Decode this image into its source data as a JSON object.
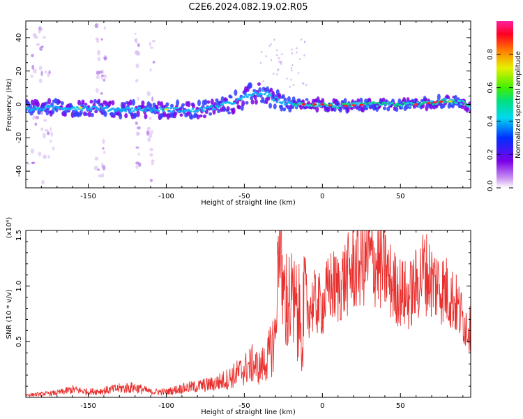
{
  "title": "C2E6.2024.082.19.02.R05",
  "colors": {
    "snr_line": "#e8302e",
    "frame": "#000000"
  },
  "chart_data": [
    {
      "type": "heatmap",
      "xlabel": "Height of straight line (km)",
      "ylabel": "Frequency (Hz)",
      "xlim": [
        -190,
        95
      ],
      "ylim": [
        -50,
        50
      ],
      "x_ticks": [
        -150,
        -100,
        -50,
        0,
        50
      ],
      "y_ticks": [
        -40,
        -20,
        0,
        20,
        40
      ],
      "colorbar": {
        "label": "Normalized spectral amplitude",
        "range": [
          0.0,
          1.0
        ],
        "ticks": [
          "0.0",
          "0.2",
          "0.4",
          "0.6",
          "0.8"
        ],
        "colormap": "rainbow (white-violet-blue-cyan-green-yellow-red-magenta)"
      },
      "ridge": {
        "x": [
          -190,
          -170,
          -150,
          -130,
          -110,
          -95,
          -85,
          -70,
          -55,
          -45,
          -38,
          -30,
          -25,
          -20,
          -10,
          0,
          10,
          30,
          50,
          60,
          70,
          80,
          90,
          95
        ],
        "freq_hz": [
          -3,
          -2,
          -2,
          -3,
          -3,
          -3,
          -4,
          -2,
          2,
          6,
          7,
          3,
          1,
          0,
          0,
          0,
          -1,
          0,
          0,
          0,
          1,
          2,
          1,
          -2
        ]
      }
    },
    {
      "type": "line",
      "xlabel": "Height of straight line (km)",
      "ylabel": "SNR (10 * v/v)",
      "y_multiplier_label": "(x10⁴)",
      "xlim": [
        -190,
        95
      ],
      "ylim": [
        0,
        1.5
      ],
      "x_ticks": [
        -150,
        -100,
        -50,
        0,
        50
      ],
      "y_ticks": [
        "0.5",
        "1.0",
        "1.5"
      ],
      "grid": false,
      "series": [
        {
          "x": [
            -190,
            -180,
            -170,
            -160,
            -150,
            -140,
            -130,
            -120,
            -110,
            -100,
            -90,
            -80,
            -70,
            -60,
            -50,
            -45,
            -40,
            -35,
            -30,
            -28,
            -25,
            -20,
            -15,
            -10,
            -5,
            0,
            5,
            10,
            15,
            20,
            25,
            30,
            35,
            40,
            45,
            50,
            55,
            60,
            65,
            70,
            75,
            80,
            85,
            90,
            95
          ],
          "y": [
            0.02,
            0.03,
            0.04,
            0.07,
            0.05,
            0.06,
            0.08,
            0.09,
            0.05,
            0.05,
            0.08,
            0.1,
            0.12,
            0.17,
            0.25,
            0.3,
            0.26,
            0.35,
            0.55,
            1.4,
            0.9,
            0.85,
            0.7,
            0.8,
            0.85,
            0.82,
            1.0,
            0.98,
            1.08,
            1.15,
            1.22,
            1.25,
            1.2,
            1.15,
            1.0,
            0.95,
            0.9,
            1.0,
            1.15,
            1.05,
            1.0,
            0.95,
            0.85,
            0.7,
            0.6
          ]
        }
      ]
    }
  ]
}
